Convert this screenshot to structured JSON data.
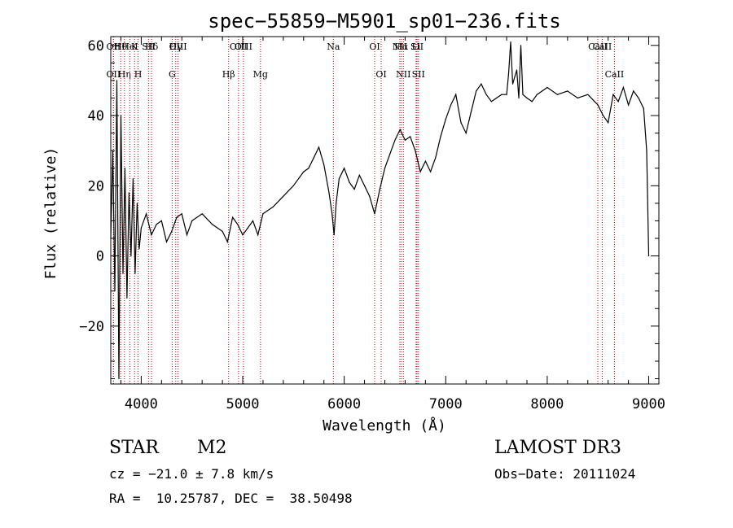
{
  "chart_data": {
    "type": "line",
    "title": "spec−55859−M5901_sp01−236.fits",
    "xlabel": "Wavelength (Å)",
    "ylabel": "Flux (relative)",
    "xlim": [
      3700,
      9100
    ],
    "ylim": [
      -36.5,
      62.5
    ],
    "xticks": [
      4000,
      5000,
      6000,
      7000,
      8000,
      9000
    ],
    "xtick_labels": [
      "4000",
      "5000",
      "6000",
      "7000",
      "8000",
      "9000"
    ],
    "yticks": [
      -20,
      0,
      20,
      40,
      60
    ],
    "ytick_labels": [
      "−20",
      "0",
      "20",
      "40",
      "60"
    ],
    "grid": false,
    "line_color": "#000000",
    "marker_color": "#cc0000",
    "series": [
      {
        "name": "spectrum",
        "x": [
          3700,
          3720,
          3740,
          3760,
          3780,
          3800,
          3820,
          3840,
          3860,
          3880,
          3900,
          3920,
          3940,
          3960,
          3980,
          4000,
          4050,
          4100,
          4150,
          4200,
          4250,
          4300,
          4350,
          4400,
          4450,
          4500,
          4600,
          4700,
          4800,
          4850,
          4900,
          4950,
          5000,
          5050,
          5100,
          5150,
          5200,
          5300,
          5400,
          5500,
          5600,
          5650,
          5700,
          5750,
          5800,
          5850,
          5880,
          5900,
          5920,
          5950,
          6000,
          6050,
          6100,
          6150,
          6200,
          6250,
          6300,
          6350,
          6400,
          6450,
          6500,
          6550,
          6600,
          6650,
          6700,
          6750,
          6800,
          6850,
          6900,
          6950,
          7000,
          7050,
          7100,
          7150,
          7200,
          7250,
          7300,
          7350,
          7400,
          7450,
          7500,
          7550,
          7600,
          7620,
          7640,
          7660,
          7700,
          7720,
          7740,
          7760,
          7800,
          7850,
          7900,
          7950,
          8000,
          8100,
          8200,
          8300,
          8400,
          8500,
          8550,
          8600,
          8650,
          8700,
          8750,
          8800,
          8850,
          8900,
          8950,
          8980,
          9000
        ],
        "y": [
          5,
          30,
          -10,
          50,
          -35,
          40,
          -5,
          25,
          -12,
          18,
          0,
          22,
          -5,
          15,
          2,
          8,
          12,
          6,
          9,
          10,
          4,
          7,
          11,
          12,
          6,
          10,
          12,
          9,
          7,
          4,
          11,
          9,
          6,
          8,
          10,
          6,
          12,
          14,
          17,
          20,
          24,
          25,
          28,
          31,
          26,
          18,
          12,
          6,
          15,
          22,
          25,
          21,
          19,
          23,
          20,
          17,
          12,
          19,
          25,
          29,
          33,
          36,
          33,
          34,
          30,
          24,
          27,
          24,
          28,
          34,
          39,
          43,
          46,
          38,
          35,
          41,
          47,
          49,
          46,
          44,
          45,
          46,
          46,
          52,
          61,
          49,
          53,
          45,
          60,
          46,
          45,
          44,
          46,
          47,
          48,
          46,
          47,
          45,
          46,
          43,
          40,
          38,
          46,
          44,
          48,
          43,
          47,
          45,
          42,
          30,
          0
        ]
      }
    ],
    "line_markers": [
      {
        "label": "OII",
        "x": 3727,
        "row": 2
      },
      {
        "label": "Hθ",
        "x": 3798,
        "row": 1
      },
      {
        "label": "OII",
        "x": 3727,
        "row": 1
      },
      {
        "label": "Hη",
        "x": 3835,
        "row": 2
      },
      {
        "label": "HeI",
        "x": 3889,
        "row": 1
      },
      {
        "label": "K",
        "x": 3934,
        "row": 1
      },
      {
        "label": "H",
        "x": 3969,
        "row": 2
      },
      {
        "label": "SII",
        "x": 4072,
        "row": 1
      },
      {
        "label": "Hδ",
        "x": 4102,
        "row": 1
      },
      {
        "label": "G",
        "x": 4305,
        "row": 2
      },
      {
        "label": "Hγ",
        "x": 4340,
        "row": 1
      },
      {
        "label": "OIII",
        "x": 4363,
        "row": 1
      },
      {
        "label": "Hβ",
        "x": 4861,
        "row": 2
      },
      {
        "label": "OIII",
        "x": 4959,
        "row": 1
      },
      {
        "label": "OIII",
        "x": 5007,
        "row": 1
      },
      {
        "label": "Mg",
        "x": 5175,
        "row": 2
      },
      {
        "label": "Na",
        "x": 5893,
        "row": 1
      },
      {
        "label": "OI",
        "x": 6300,
        "row": 1
      },
      {
        "label": "OI",
        "x": 6364,
        "row": 2
      },
      {
        "label": "NII",
        "x": 6548,
        "row": 1
      },
      {
        "label": "Hα",
        "x": 6563,
        "row": 1
      },
      {
        "label": "NII",
        "x": 6583,
        "row": 2
      },
      {
        "label": "Li",
        "x": 6708,
        "row": 1
      },
      {
        "label": "SII",
        "x": 6717,
        "row": 1
      },
      {
        "label": "SII",
        "x": 6731,
        "row": 2
      },
      {
        "label": "CaII",
        "x": 8498,
        "row": 1
      },
      {
        "label": "CaII",
        "x": 8542,
        "row": 1
      },
      {
        "label": "CaII",
        "x": 8662,
        "row": 2
      }
    ]
  },
  "info": {
    "class_label": "STAR",
    "subclass": "M2",
    "survey": "LAMOST DR3",
    "cz": "cz = −21.0 ± 7.8 km/s",
    "obs_date": "Obs−Date: 20111024",
    "coords": "RA =  10.25787, DEC =  38.50498"
  }
}
